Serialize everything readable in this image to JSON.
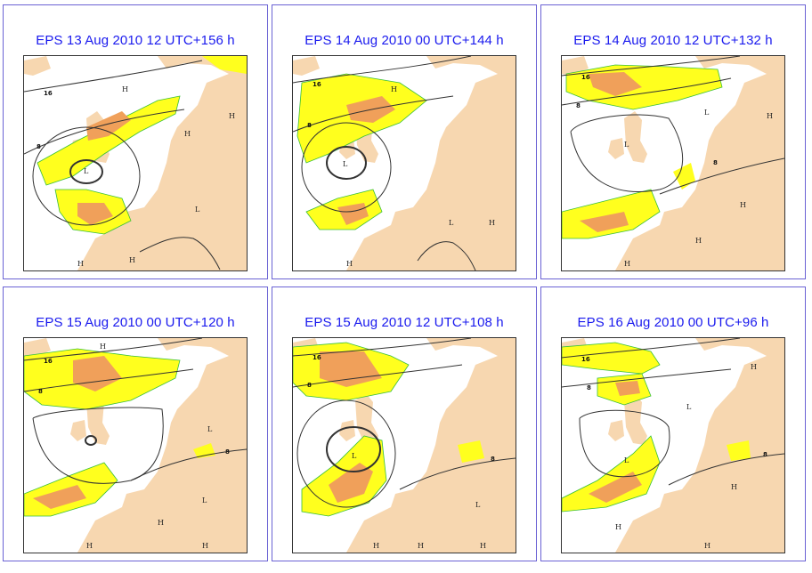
{
  "panels": [
    {
      "title": "EPS 13 Aug 2010 12 UTC+156 h",
      "isolines": [
        "16",
        "8"
      ]
    },
    {
      "title": "EPS 14 Aug 2010 00 UTC+144 h",
      "isolines": [
        "16",
        "8"
      ]
    },
    {
      "title": "EPS 14 Aug 2010 12 UTC+132 h",
      "isolines": [
        "16",
        "8",
        "8"
      ]
    },
    {
      "title": "EPS 15 Aug 2010 00 UTC+120 h",
      "isolines": [
        "16",
        "8",
        "8"
      ]
    },
    {
      "title": "EPS 15 Aug 2010 12 UTC+108 h",
      "isolines": [
        "16",
        "8",
        "8"
      ]
    },
    {
      "title": "EPS 16 Aug 2010 00 UTC+96 h",
      "isolines": [
        "16",
        "8",
        "8"
      ]
    }
  ],
  "pressure_labels": {
    "high": "H",
    "low": "L"
  },
  "colors": {
    "land": "#f7d7b0",
    "sea": "#ffffff",
    "prob_low": "#ffff1e",
    "prob_mid": "#d8cf3c",
    "prob_high": "#f0a05a",
    "prob_max": "#d8703c",
    "contour": "#333333",
    "title": "#1a1aee",
    "frame": "#6a62d4"
  }
}
